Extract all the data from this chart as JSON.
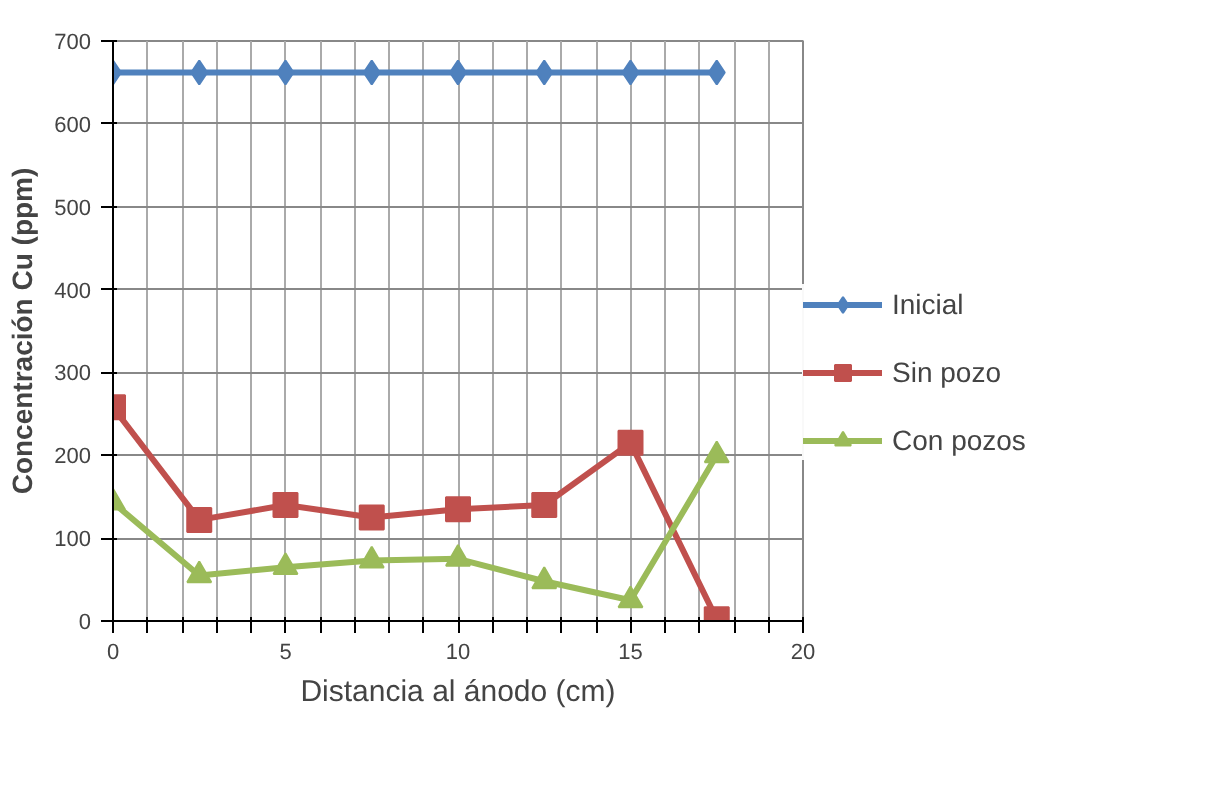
{
  "chart_data": {
    "type": "line",
    "xlabel": "Distancia al ánodo (cm)",
    "ylabel": "Concentración Cu (ppm)",
    "x": [
      0,
      2.5,
      5,
      7.5,
      10,
      12.5,
      15,
      17.5
    ],
    "xlim": [
      0,
      20
    ],
    "xticks": [
      0,
      {
        "value": 1,
        "label": null
      },
      {
        "value": 2,
        "label": null
      },
      {
        "value": 3,
        "label": null
      },
      {
        "value": 4,
        "label": null
      },
      5,
      {
        "value": 6,
        "label": null
      },
      {
        "value": 7,
        "label": null
      },
      {
        "value": 8,
        "label": null
      },
      {
        "value": 9,
        "label": null
      },
      10,
      {
        "value": 11,
        "label": null
      },
      {
        "value": 12,
        "label": null
      },
      {
        "value": 13,
        "label": null
      },
      {
        "value": 14,
        "label": null
      },
      15,
      {
        "value": 16,
        "label": null
      },
      {
        "value": 17,
        "label": null
      },
      {
        "value": 18,
        "label": null
      },
      {
        "value": 19,
        "label": null
      },
      20
    ],
    "ylim": [
      0,
      700
    ],
    "yticks": [
      0,
      100,
      200,
      300,
      400,
      500,
      600,
      700
    ],
    "grid": true,
    "legend": "right",
    "series": [
      {
        "name": "Inicial",
        "color": "#4f81bd",
        "marker": "diamond",
        "values": [
          662,
          662,
          662,
          662,
          662,
          662,
          662,
          662
        ]
      },
      {
        "name": "Sin pozo",
        "color": "#c0504d",
        "marker": "square",
        "values": [
          258,
          122,
          140,
          125,
          135,
          140,
          215,
          2
        ]
      },
      {
        "name": "Con pozos",
        "color": "#9bbb59",
        "marker": "triangle",
        "values": [
          143,
          55,
          65,
          73,
          75,
          48,
          25,
          200
        ]
      }
    ]
  }
}
